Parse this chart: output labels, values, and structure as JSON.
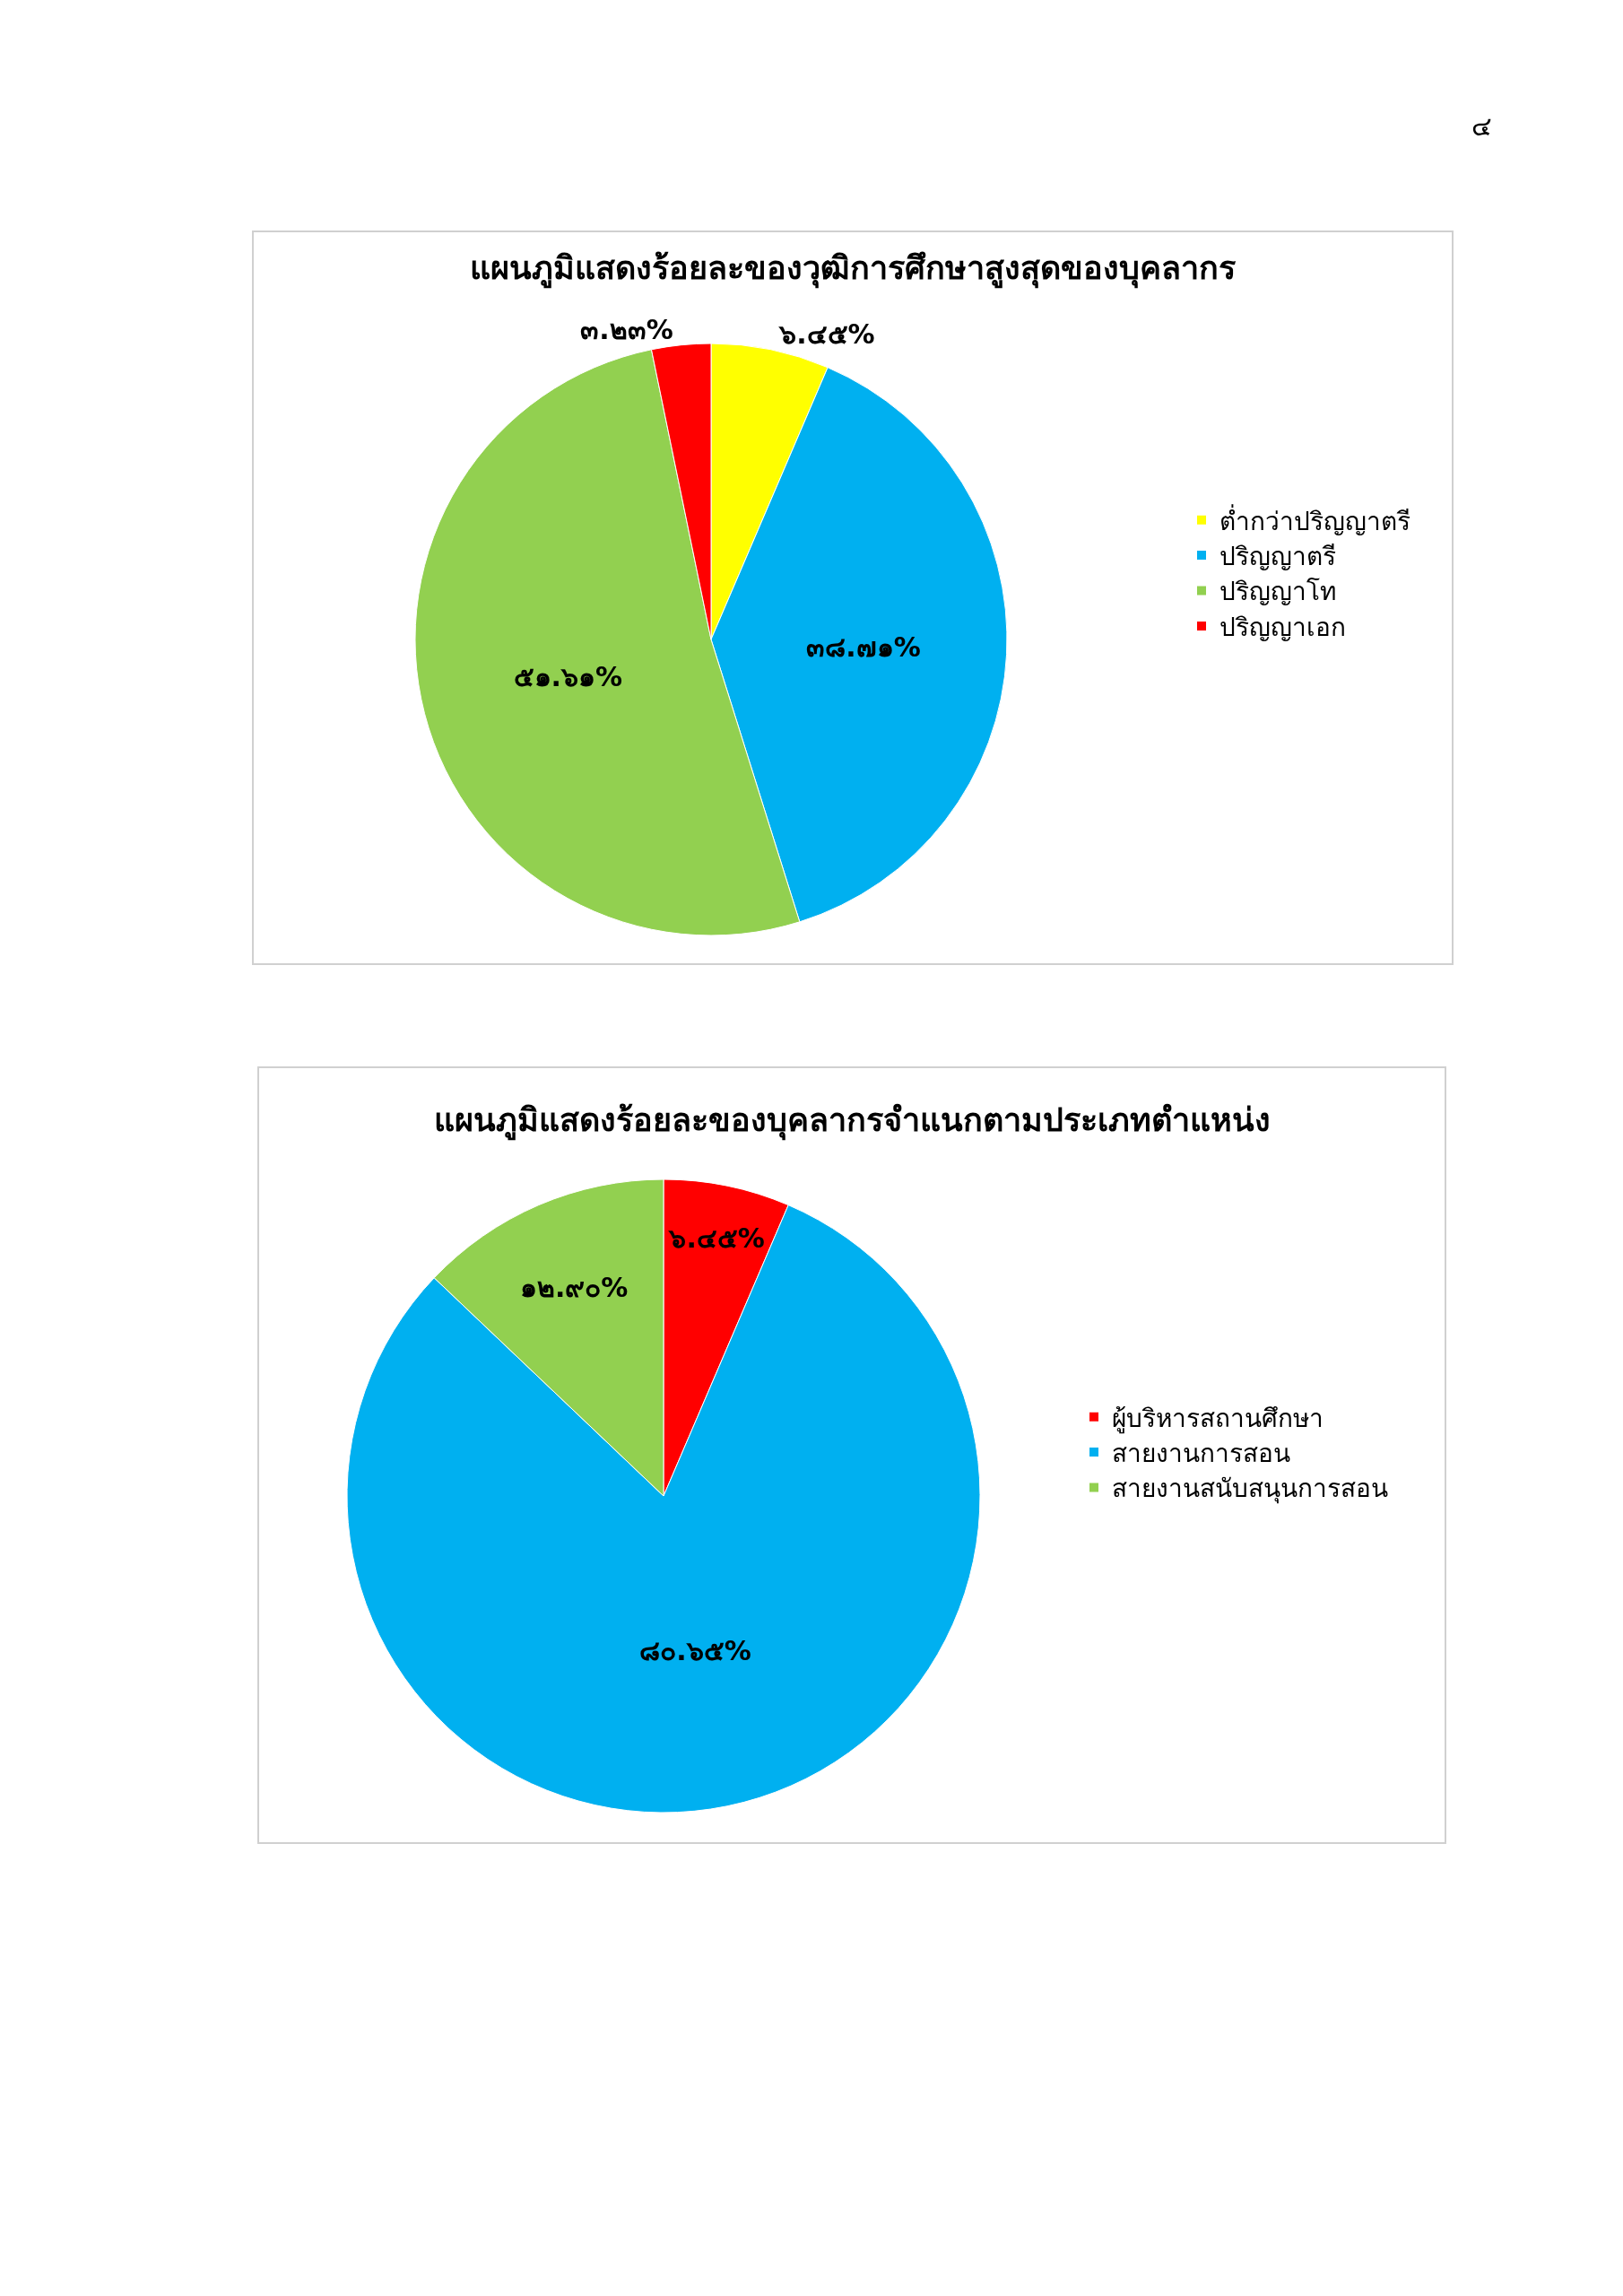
{
  "chart_data": [
    {
      "type": "pie",
      "title": "แผนภูมิแสดงร้อยละของวุฒิการศึกษาสูงสุดของบุคลากร",
      "annotations": [
        "๔"
      ],
      "categories": [
        "ต่ำกว่าปริญญาตรี",
        "ปริญญาตรี",
        "ปริญญาโท",
        "ปริญญาเอก"
      ],
      "values": [
        6.45,
        38.71,
        51.61,
        3.23
      ],
      "value_labels": [
        "๖.๔๕%",
        "๓๘.๗๑%",
        "๕๑.๖๑%",
        "๓.๒๓%"
      ],
      "colors": [
        "#ffff00",
        "#00b0f0",
        "#92d050",
        "#ff0000"
      ],
      "legend": "right"
    },
    {
      "type": "pie",
      "title": "แผนภูมิแสดงร้อยละของบุคลากรจำแนกตามประเภทตำแหน่ง",
      "categories": [
        "ผู้บริหารสถานศึกษา",
        "สายงานการสอน",
        "สายงานสนับสนุนการสอน"
      ],
      "values": [
        6.45,
        80.65,
        12.9
      ],
      "value_labels": [
        "๖.๔๕%",
        "๘๐.๖๕%",
        "๑๒.๙๐%"
      ],
      "colors": [
        "#ff0000",
        "#00b0f0",
        "#92d050"
      ],
      "legend": "right"
    }
  ]
}
